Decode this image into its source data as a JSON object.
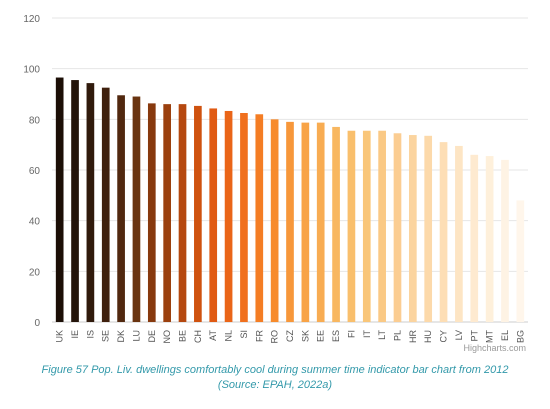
{
  "chart_data": {
    "type": "bar",
    "categories": [
      "UK",
      "IE",
      "IS",
      "SE",
      "DK",
      "LU",
      "DE",
      "NO",
      "BE",
      "CH",
      "AT",
      "NL",
      "SI",
      "FR",
      "RO",
      "CZ",
      "SK",
      "EE",
      "ES",
      "FI",
      "IT",
      "LT",
      "PL",
      "HR",
      "HU",
      "CY",
      "LV",
      "PT",
      "MT",
      "EL",
      "BG"
    ],
    "values": [
      96.5,
      95.5,
      94.3,
      92.5,
      89.5,
      89.0,
      86.3,
      86.0,
      86.0,
      85.3,
      84.3,
      83.3,
      82.5,
      82.0,
      80.0,
      79.0,
      78.7,
      78.7,
      77.0,
      75.5,
      75.5,
      75.5,
      74.5,
      73.8,
      73.5,
      71.0,
      69.5,
      66.0,
      65.5,
      64.0,
      48.0
    ],
    "colors": [
      "#1c0f07",
      "#24140a",
      "#301a0c",
      "#3f200d",
      "#51280f",
      "#6a3410",
      "#87390e",
      "#9b400e",
      "#b5480f",
      "#cf520f",
      "#e05a13",
      "#ea6518",
      "#f0701e",
      "#f47d24",
      "#f78b2c",
      "#f7973a",
      "#f8a346",
      "#f8ac52",
      "#f8b760",
      "#f9bf6c",
      "#f9c679",
      "#fac985",
      "#fbcd92",
      "#fbd49f",
      "#fcd9aa",
      "#fddeb5",
      "#fde5c4",
      "#feead0",
      "#fef0db",
      "#fef3e4",
      "#fff6eb"
    ],
    "ylim": [
      0,
      120
    ],
    "yticks": [
      0,
      20,
      40,
      60,
      80,
      100,
      120
    ],
    "grid": true,
    "legend": "none",
    "title": "",
    "xlabel": "",
    "ylabel": ""
  },
  "credit": "Highcharts.com",
  "caption": {
    "line1": "Figure 57 Pop. Liv. dwellings comfortably cool during summer time indicator bar chart from 2012",
    "line2": "(Source: EPAH, 2022a)"
  }
}
